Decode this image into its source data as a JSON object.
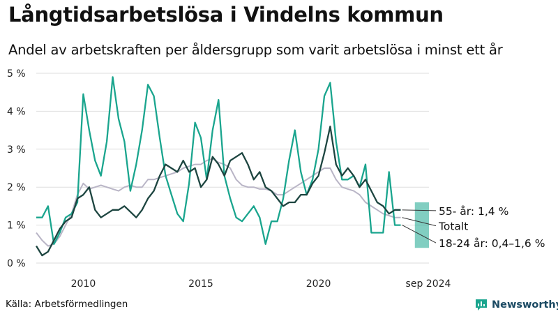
{
  "title": "Långtidsarbetslösa i Vindelns kommun",
  "subtitle": "Andel av arbetskraften per åldersgrupp som varit arbetslösa i minst ett år",
  "source": "Källa: Arbetsförmedlingen",
  "brand": "Newsworthy",
  "colors": {
    "young": "#1aa58e",
    "old": "#1d4540",
    "total": "#b9b5c6",
    "band": "#1aa58e",
    "grid": "#dddddd",
    "brand": "#1b4a63"
  },
  "chart_data": {
    "type": "line",
    "title": "Långtidsarbetslösa i Vindelns kommun",
    "subtitle": "Andel av arbetskraften per åldersgrupp som varit arbetslösa i minst ett år",
    "xlabel": "",
    "ylabel": "",
    "x_start": 2008.0,
    "x_step": 0.25,
    "xlim": [
      2008.0,
      2024.7
    ],
    "ylim": [
      0,
      5
    ],
    "y_ticks": [
      0,
      1,
      2,
      3,
      4,
      5
    ],
    "y_tick_labels": [
      "0 %",
      "1 %",
      "2 %",
      "3 %",
      "4 %",
      "5 %"
    ],
    "x_ticks": [
      2010,
      2015,
      2020,
      2024.67
    ],
    "x_tick_labels": [
      "2010",
      "2015",
      "2020",
      "sep 2024"
    ],
    "grid": true,
    "series": [
      {
        "name": "18-24 år",
        "color": "#1aa58e",
        "values": [
          1.2,
          1.2,
          1.5,
          0.5,
          0.8,
          1.2,
          1.3,
          1.6,
          4.45,
          3.5,
          2.7,
          2.3,
          3.2,
          4.9,
          3.8,
          3.2,
          1.9,
          2.6,
          3.5,
          4.7,
          4.4,
          3.3,
          2.3,
          1.8,
          1.3,
          1.1,
          2.1,
          3.7,
          3.3,
          2.2,
          3.5,
          4.3,
          2.3,
          1.7,
          1.2,
          1.1,
          1.3,
          1.5,
          1.2,
          0.5,
          1.1,
          1.1,
          1.7,
          2.7,
          3.5,
          2.4,
          1.8,
          2.2,
          3.0,
          4.4,
          4.75,
          3.2,
          2.2,
          2.2,
          2.3,
          2.0,
          2.6,
          0.8,
          0.8,
          0.8,
          2.4,
          1.0,
          1.0
        ],
        "annotation": "18-24 år: 0,4–1,6 %"
      },
      {
        "name": "55- år",
        "color": "#1d4540",
        "values": [
          0.45,
          0.2,
          0.3,
          0.6,
          0.9,
          1.1,
          1.2,
          1.7,
          1.8,
          2.0,
          1.4,
          1.2,
          1.3,
          1.4,
          1.4,
          1.5,
          1.35,
          1.2,
          1.4,
          1.7,
          1.9,
          2.3,
          2.6,
          2.5,
          2.4,
          2.7,
          2.4,
          2.5,
          2.0,
          2.2,
          2.8,
          2.6,
          2.3,
          2.7,
          2.8,
          2.9,
          2.6,
          2.2,
          2.4,
          2.0,
          1.9,
          1.7,
          1.5,
          1.6,
          1.6,
          1.8,
          1.8,
          2.1,
          2.3,
          2.9,
          3.6,
          2.6,
          2.3,
          2.5,
          2.3,
          2.0,
          2.2,
          1.9,
          1.6,
          1.5,
          1.3,
          1.4,
          1.4
        ],
        "annotation": "55- år: 1,4 %"
      },
      {
        "name": "Totalt",
        "color": "#b9b5c6",
        "values": [
          0.8,
          0.6,
          0.45,
          0.5,
          0.7,
          1.0,
          1.3,
          1.8,
          2.1,
          1.95,
          2.0,
          2.05,
          2.0,
          1.95,
          1.9,
          2.0,
          2.05,
          2.0,
          2.0,
          2.2,
          2.2,
          2.25,
          2.3,
          2.35,
          2.4,
          2.5,
          2.55,
          2.6,
          2.6,
          2.7,
          2.75,
          2.65,
          2.6,
          2.5,
          2.2,
          2.05,
          2.0,
          2.0,
          1.95,
          1.95,
          1.9,
          1.8,
          1.8,
          1.9,
          2.0,
          2.1,
          2.2,
          2.3,
          2.4,
          2.5,
          2.5,
          2.2,
          2.0,
          1.95,
          1.9,
          1.8,
          1.6,
          1.5,
          1.4,
          1.3,
          1.25,
          1.2,
          1.2
        ],
        "annotation": "Totalt"
      }
    ],
    "band": {
      "series": "18-24 år",
      "x_from": 2024.1,
      "x_to": 2024.7,
      "low": 0.4,
      "high": 1.6
    }
  }
}
